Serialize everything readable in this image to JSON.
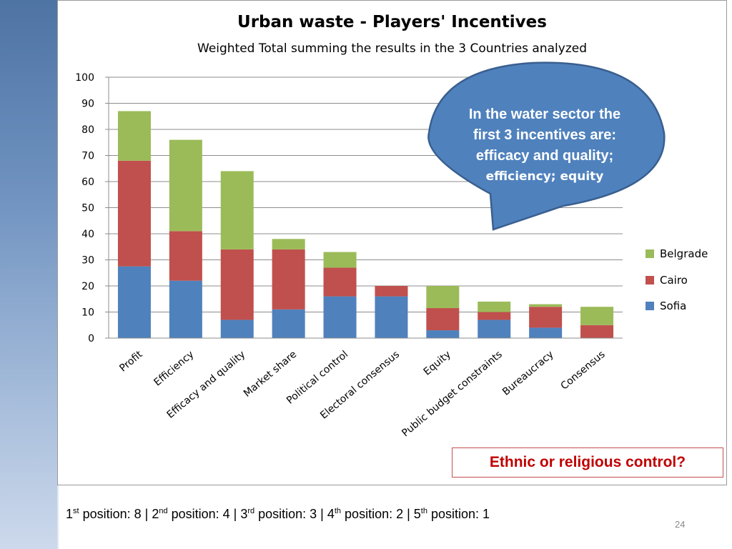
{
  "slide": {
    "page_number": "24"
  },
  "chart_data": {
    "type": "bar",
    "stacked": true,
    "title": "Urban waste - Players' Incentives",
    "subtitle": "Weighted Total summing the results in the 3 Countries analyzed",
    "categories": [
      "Profit",
      "Efficiency",
      "Efficacy and quality",
      "Market share",
      "Political control",
      "Electoral consensus",
      "Equity",
      "Public budget constraints",
      "Bureaucracy",
      "Consensus"
    ],
    "series": [
      {
        "name": "Sofia",
        "color": "#4f81bd",
        "values": [
          27.5,
          22,
          7,
          11,
          16,
          16,
          3,
          7,
          4,
          0
        ]
      },
      {
        "name": "Cairo",
        "color": "#c0504d",
        "values": [
          40.5,
          19,
          27,
          23,
          11,
          4,
          8.5,
          3,
          8,
          5
        ]
      },
      {
        "name": "Belgrade",
        "color": "#9bbb59",
        "values": [
          19,
          35,
          30,
          4,
          6,
          0,
          8.5,
          4,
          1,
          7
        ]
      }
    ],
    "legend_order": [
      "Belgrade",
      "Cairo",
      "Sofia"
    ],
    "ylim": [
      0,
      100
    ],
    "yticks": [
      0,
      10,
      20,
      30,
      40,
      50,
      60,
      70,
      80,
      90,
      100
    ],
    "grid": true,
    "legend_position": "right"
  },
  "callout": {
    "line1": "In the water sector the",
    "line2": "first 3 incentives are:",
    "line3": "efficacy and quality;",
    "line4": "efficiency; equity",
    "fill": "#4f81bd"
  },
  "note": {
    "text": "Ethnic or religious control?"
  },
  "positions": {
    "p1_num": "1",
    "p1_sup": "st",
    "p1_text": " position: 8 | ",
    "p2_num": "2",
    "p2_sup": "nd",
    "p2_text": " position: 4 | ",
    "p3_num": "3",
    "p3_sup": "rd",
    "p3_text": " position: 3 | ",
    "p4_num": "4",
    "p4_sup": "th",
    "p4_text": " position: 2 | ",
    "p5_num": "5",
    "p5_sup": "th",
    "p5_text": " position: 1"
  }
}
